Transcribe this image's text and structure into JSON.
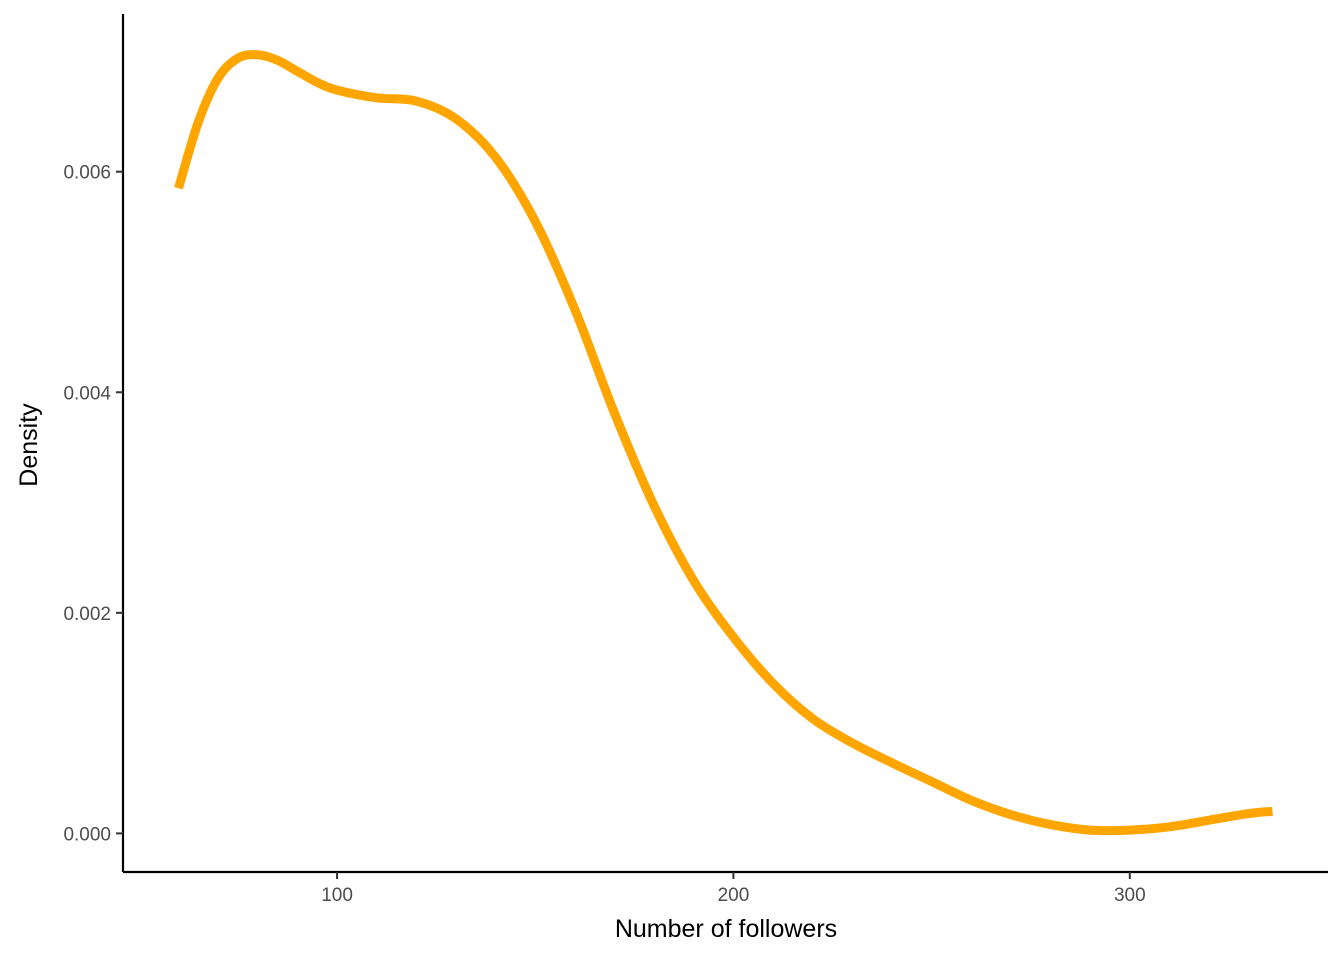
{
  "chart_data": {
    "type": "line",
    "title": "",
    "xlabel": "Number of followers",
    "ylabel": "Density",
    "xlim": [
      46,
      350
    ],
    "ylim": [
      -0.00035,
      0.00743
    ],
    "x_ticks": [
      100,
      200,
      300
    ],
    "x_tick_labels": [
      "100",
      "200",
      "300"
    ],
    "y_ticks": [
      0.0,
      0.002,
      0.004,
      0.006
    ],
    "y_tick_labels": [
      "0.000",
      "0.002",
      "0.004",
      "0.006"
    ],
    "grid": false,
    "legend": "none",
    "series": [
      {
        "color": "#FFA500",
        "x": [
          60,
          65,
          70,
          75,
          80,
          85,
          90,
          95,
          100,
          110,
          120,
          130,
          140,
          150,
          160,
          170,
          180,
          190,
          200,
          210,
          220,
          230,
          240,
          250,
          260,
          270,
          280,
          290,
          300,
          310,
          320,
          330,
          336
        ],
        "y": [
          0.00585,
          0.00645,
          0.00685,
          0.00703,
          0.00706,
          0.00701,
          0.00691,
          0.00681,
          0.00674,
          0.00667,
          0.00664,
          0.00648,
          0.00613,
          0.00555,
          0.00475,
          0.00381,
          0.00297,
          0.00229,
          0.00178,
          0.00136,
          0.00104,
          0.00082,
          0.00064,
          0.00047,
          0.0003,
          0.00017,
          8e-05,
          3e-05,
          3e-05,
          6e-05,
          0.00012,
          0.00018,
          0.0002
        ]
      }
    ]
  }
}
